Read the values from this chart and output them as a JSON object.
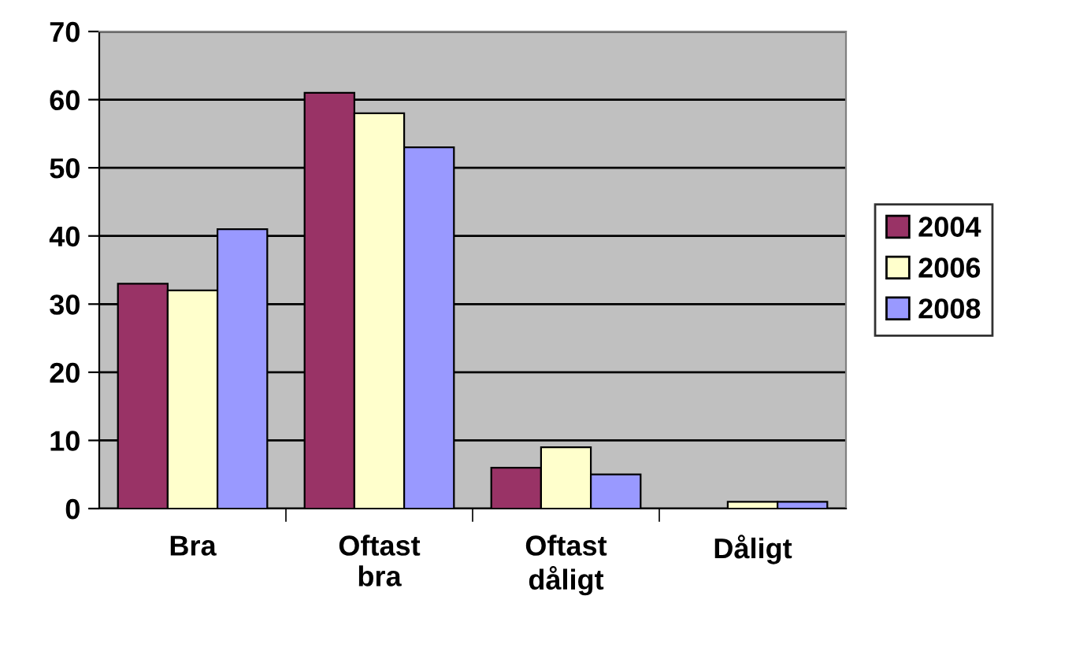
{
  "chart_data": {
    "type": "bar",
    "categories": [
      "Bra",
      "Oftast bra",
      "Oftast dåligt",
      "Dåligt"
    ],
    "series": [
      {
        "name": "2004",
        "color": "#993366",
        "values": [
          33,
          61,
          6,
          null
        ]
      },
      {
        "name": "2006",
        "color": "#ffffcc",
        "values": [
          32,
          58,
          9,
          1
        ]
      },
      {
        "name": "2008",
        "color": "#9999ff",
        "values": [
          41,
          53,
          5,
          1
        ]
      }
    ],
    "ylim": [
      0,
      70
    ],
    "yticks": [
      0,
      10,
      20,
      30,
      40,
      50,
      60,
      70
    ],
    "grid": "y",
    "legend": "right"
  }
}
